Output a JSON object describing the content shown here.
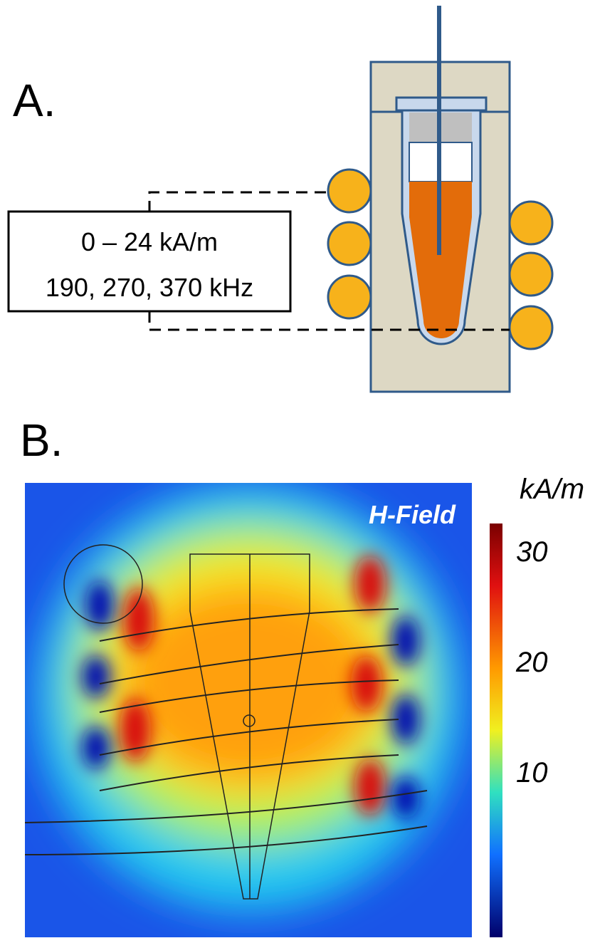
{
  "panel_a": {
    "label": "A.",
    "field_range": "0 – 24 kA/m",
    "frequencies": "190, 270, 370 kHz"
  },
  "panel_b": {
    "label": "B.",
    "title": "H-Field",
    "colorbar": {
      "unit": "kA/m",
      "ticks": [
        30,
        20,
        10
      ]
    }
  }
}
